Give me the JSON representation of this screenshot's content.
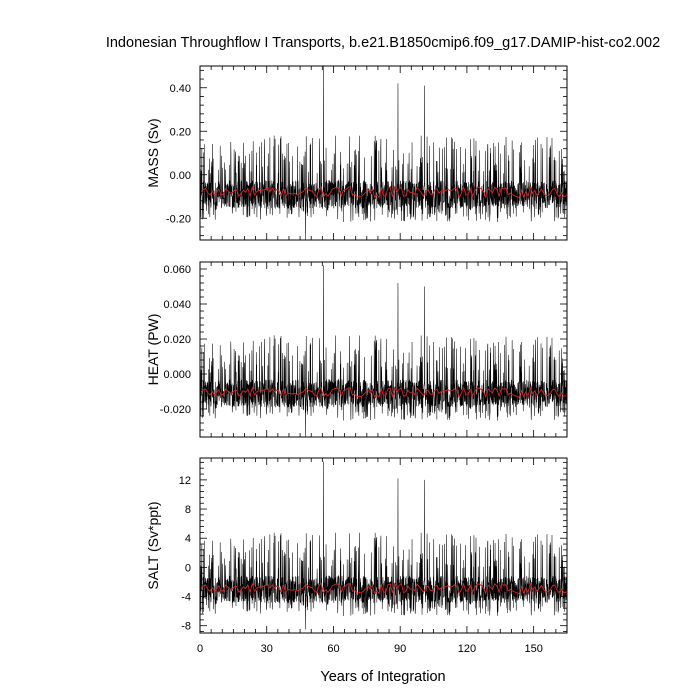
{
  "figure": {
    "title": "Indonesian Throughflow I Transports, b.e21.B1850cmip6.f09_g17.DAMIP-hist-co2.002",
    "xlabel": "Years of Integration"
  },
  "chart_data": [
    {
      "type": "line",
      "panel": "mass",
      "ylabel": "MASS (Sv)",
      "xlim": [
        0,
        165
      ],
      "ylim": [
        -0.3,
        0.5
      ],
      "x_ticks": [
        0,
        30,
        60,
        90,
        120,
        150
      ],
      "y_ticks": [
        -0.2,
        0,
        0.2,
        0.4
      ],
      "y_tick_labels": [
        "-0.20",
        "0.00",
        "0.20",
        "0.40"
      ],
      "grid": false,
      "series": [
        {
          "color": "#000000",
          "kind": "monthly",
          "mean": -0.09,
          "min": -0.3,
          "max": 0.5,
          "spikes": [
            {
              "x": 55.5,
              "y": 0.5
            },
            {
              "x": 89,
              "y": 0.42
            },
            {
              "x": 101,
              "y": 0.41
            },
            {
              "x": 47.5,
              "y": -0.3
            }
          ]
        },
        {
          "color": "#e02020",
          "kind": "annual-mean",
          "mean": -0.09,
          "min": -0.13,
          "max": -0.03
        }
      ]
    },
    {
      "type": "line",
      "panel": "heat",
      "ylabel": "HEAT (PW)",
      "xlim": [
        0,
        165
      ],
      "ylim": [
        -0.036,
        0.064
      ],
      "x_ticks": [
        0,
        30,
        60,
        90,
        120,
        150
      ],
      "y_ticks": [
        -0.02,
        0,
        0.02,
        0.04,
        0.06
      ],
      "y_tick_labels": [
        "-0.020",
        "0.000",
        "0.020",
        "0.040",
        "0.060"
      ],
      "grid": false,
      "series": [
        {
          "color": "#000000",
          "kind": "monthly",
          "mean": -0.011,
          "min": -0.036,
          "max": 0.062,
          "spikes": [
            {
              "x": 55.5,
              "y": 0.062
            },
            {
              "x": 89,
              "y": 0.052
            },
            {
              "x": 101,
              "y": 0.05
            },
            {
              "x": 47.5,
              "y": -0.036
            }
          ]
        },
        {
          "color": "#e02020",
          "kind": "annual-mean",
          "mean": -0.011,
          "min": -0.016,
          "max": -0.005
        }
      ]
    },
    {
      "type": "line",
      "panel": "salt",
      "ylabel": "SALT (Sv*ppt)",
      "xlim": [
        0,
        165
      ],
      "ylim": [
        -9,
        15
      ],
      "x_ticks": [
        0,
        30,
        60,
        90,
        120,
        150
      ],
      "x_tick_labels": [
        "0",
        "30",
        "60",
        "90",
        "120",
        "150"
      ],
      "y_ticks": [
        -8,
        -4,
        0,
        4,
        8,
        12
      ],
      "y_tick_labels": [
        "-8",
        "-4",
        "0",
        "4",
        "8",
        "12"
      ],
      "grid": false,
      "series": [
        {
          "color": "#000000",
          "kind": "monthly",
          "mean": -3.0,
          "min": -8.5,
          "max": 14.5,
          "spikes": [
            {
              "x": 55.5,
              "y": 14.5
            },
            {
              "x": 89,
              "y": 12.2
            },
            {
              "x": 101,
              "y": 12.0
            },
            {
              "x": 47.5,
              "y": -8.5
            }
          ]
        },
        {
          "color": "#e02020",
          "kind": "annual-mean",
          "mean": -3.0,
          "min": -4.3,
          "max": -1.5
        }
      ]
    }
  ]
}
